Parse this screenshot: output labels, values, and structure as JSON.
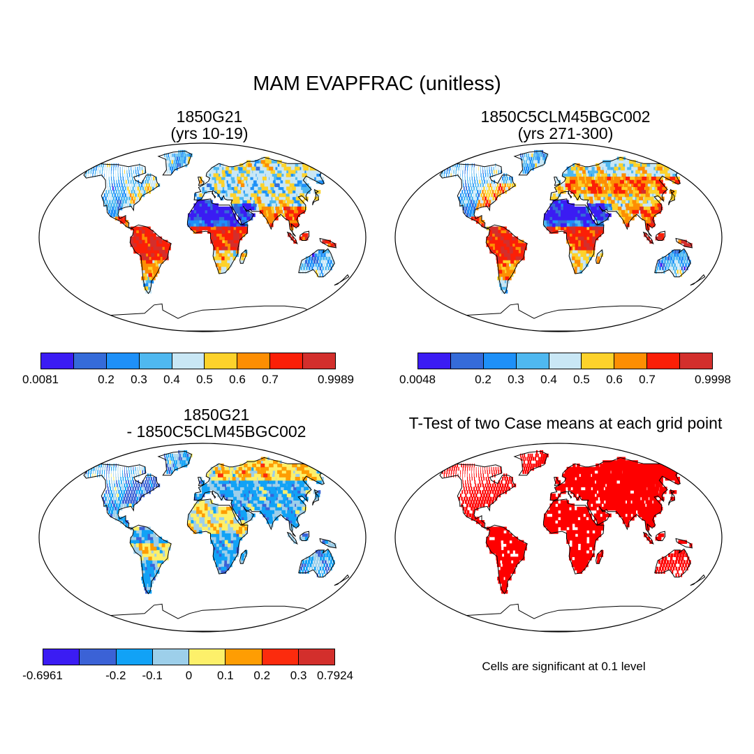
{
  "title": "MAM EVAPFRAC (unitless)",
  "panels": [
    {
      "id": "p1",
      "title_line1": "1850G21",
      "title_line2": "(yrs 10-19)",
      "fill_colors": [
        "#3b1cf3",
        "#356bd9",
        "#1e90f8",
        "#4fb8f0",
        "#c9e7f5",
        "#fdd22b",
        "#fd8e03",
        "#fb1f07",
        "#d32f2c"
      ]
    },
    {
      "id": "p2",
      "title_line1": "1850C5CLM45BGC002",
      "title_line2": "(yrs 271-300)",
      "fill_colors": [
        "#3b1cf3",
        "#356bd9",
        "#1e90f8",
        "#4fb8f0",
        "#c9e7f5",
        "#fdd22b",
        "#fd8e03",
        "#fb1f07",
        "#d32f2c"
      ]
    },
    {
      "id": "p3",
      "title_line1": "1850G21",
      "title_line2": "- 1850C5CLM45BGC002",
      "fill_colors": [
        "#3b1cf3",
        "#3b62d6",
        "#11a2f6",
        "#9dcfea",
        "#fdf06a",
        "#fe9d03",
        "#fc2b0d",
        "#d32f2c"
      ]
    },
    {
      "id": "p4",
      "title_line1": "T-Test of two Case means at each grid point",
      "title_line2": ""
    }
  ],
  "colorbars": [
    {
      "id": "cb1",
      "colors": [
        "#3b1cf3",
        "#356bd9",
        "#1e90f8",
        "#4fb8f0",
        "#c9e7f5",
        "#fdd22b",
        "#fd8e03",
        "#fb1f07",
        "#d32f2c"
      ],
      "labels": [
        {
          "text": "0.0081",
          "boundary": 0
        },
        {
          "text": "0.2",
          "boundary": 2
        },
        {
          "text": "0.3",
          "boundary": 3
        },
        {
          "text": "0.4",
          "boundary": 4
        },
        {
          "text": "0.5",
          "boundary": 5
        },
        {
          "text": "0.6",
          "boundary": 6
        },
        {
          "text": "0.7",
          "boundary": 7
        },
        {
          "text": "0.9989",
          "boundary": 9
        }
      ]
    },
    {
      "id": "cb2",
      "colors": [
        "#3b1cf3",
        "#356bd9",
        "#1e90f8",
        "#4fb8f0",
        "#c9e7f5",
        "#fdd22b",
        "#fd8e03",
        "#fb1f07",
        "#d32f2c"
      ],
      "labels": [
        {
          "text": "0.0048",
          "boundary": 0
        },
        {
          "text": "0.2",
          "boundary": 2
        },
        {
          "text": "0.3",
          "boundary": 3
        },
        {
          "text": "0.4",
          "boundary": 4
        },
        {
          "text": "0.5",
          "boundary": 5
        },
        {
          "text": "0.6",
          "boundary": 6
        },
        {
          "text": "0.7",
          "boundary": 7
        },
        {
          "text": "0.9998",
          "boundary": 9
        }
      ]
    },
    {
      "id": "cb3",
      "colors": [
        "#3b1cf3",
        "#3b62d6",
        "#11a2f6",
        "#9dcfea",
        "#fdf06a",
        "#fe9d03",
        "#fc2b0d",
        "#d32f2c"
      ],
      "labels": [
        {
          "text": "-0.6961",
          "boundary": 0
        },
        {
          "text": "-0.2",
          "boundary": 2
        },
        {
          "text": "-0.1",
          "boundary": 3
        },
        {
          "text": "0",
          "boundary": 4
        },
        {
          "text": "0.1",
          "boundary": 5
        },
        {
          "text": "0.2",
          "boundary": 6
        },
        {
          "text": "0.3",
          "boundary": 7
        },
        {
          "text": "0.7924",
          "boundary": 8
        }
      ]
    }
  ],
  "significance_note": "Cells are significant at 0.1 level",
  "significance_color": "#fe0000"
}
